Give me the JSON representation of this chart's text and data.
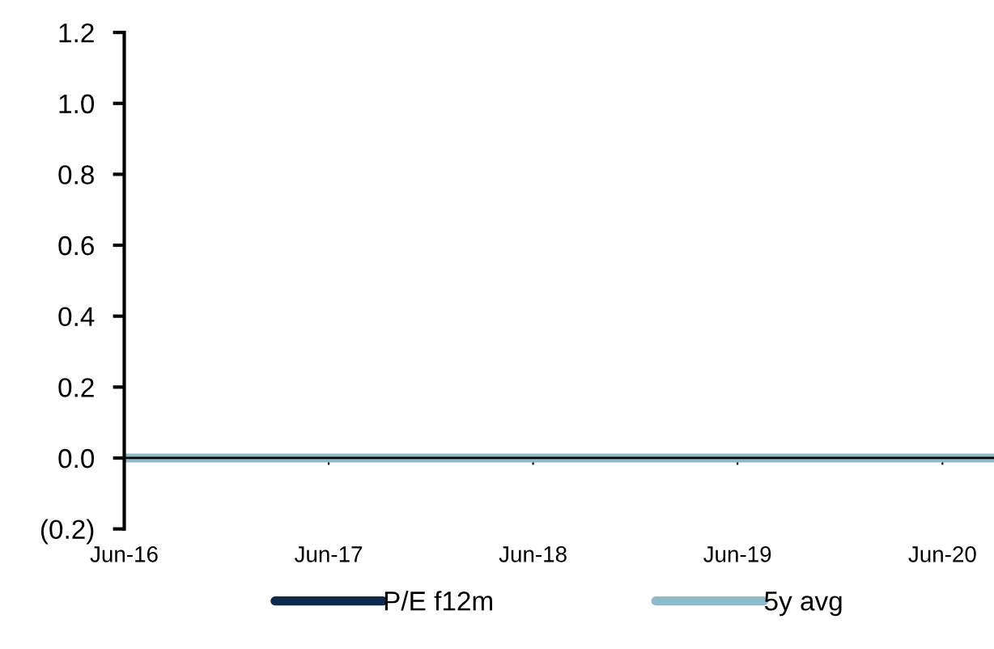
{
  "chart_data": {
    "type": "line",
    "x": [
      "2016-06",
      "2017-06",
      "2018-06",
      "2019-06",
      "2020-06",
      "2020-09"
    ],
    "series": [
      {
        "name": "P/E f12m",
        "color": "#0c2a50",
        "values": [
          null,
          null,
          null,
          null,
          null,
          null
        ]
      },
      {
        "name": "5y avg",
        "color": "#8bbccb",
        "values": [
          0,
          0,
          0,
          0,
          0,
          0
        ]
      }
    ],
    "xlim": [
      "2016-06",
      "2020-09"
    ],
    "xticks": [
      {
        "value": "2016-06",
        "label": "Jun-16"
      },
      {
        "value": "2017-06",
        "label": "Jun-17"
      },
      {
        "value": "2018-06",
        "label": "Jun-18"
      },
      {
        "value": "2019-06",
        "label": "Jun-19"
      },
      {
        "value": "2020-06",
        "label": "Jun-20"
      }
    ],
    "ylim": [
      -0.2,
      1.2
    ],
    "yticks": [
      {
        "value": -0.2,
        "label": "(0.2)"
      },
      {
        "value": 0,
        "label": "0.0"
      },
      {
        "value": 0.2,
        "label": "0.2"
      },
      {
        "value": 0.4,
        "label": "0.4"
      },
      {
        "value": 0.6,
        "label": "0.6"
      },
      {
        "value": 0.8,
        "label": "0.8"
      },
      {
        "value": 1.0,
        "label": "1.0"
      },
      {
        "value": 1.2,
        "label": "1.2"
      }
    ],
    "legend": "bottom",
    "marker": "none",
    "line_style": "solid"
  }
}
